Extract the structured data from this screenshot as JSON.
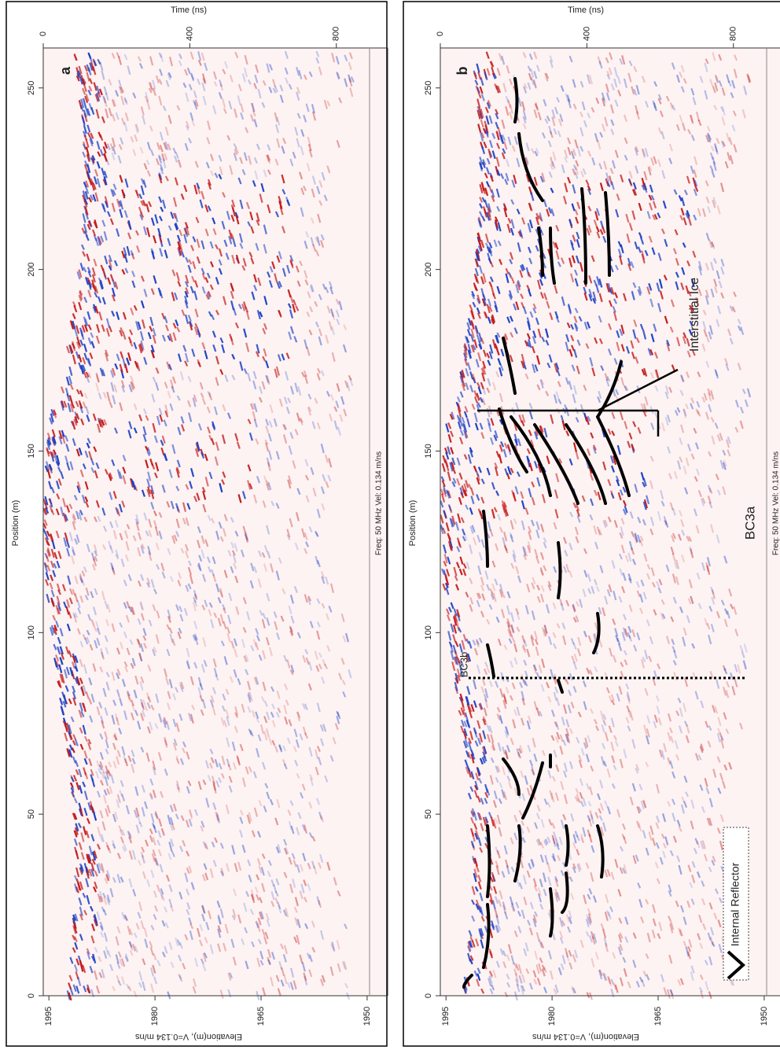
{
  "chart_data": [
    {
      "type": "radargram",
      "label": "a",
      "xlabel": "Position (m)",
      "time_label": "Time (ns)",
      "elevation_label": "Elevation(m), V=0.134 m/ns",
      "footer": "Freq: 50 MHz  Vel: 0.134 m/ns",
      "xlim": [
        0,
        261
      ],
      "xticks": [
        0,
        50,
        100,
        150,
        200,
        250
      ],
      "time_lim": [
        0,
        940
      ],
      "time_ticks": [
        0,
        400,
        800
      ],
      "elevation_lim": [
        1995.8,
        1947.1
      ],
      "elevation_ticks": [
        1995,
        1980,
        1965,
        1950
      ]
    },
    {
      "type": "radargram",
      "label": "b",
      "xlabel": "Position (m)",
      "time_label": "Time (ns)",
      "elevation_label": "Elevation(m), V=0.134 m/ns",
      "footer": "Freq: 50 MHz  Vel: 0.134 m/ns",
      "xlim": [
        0,
        261
      ],
      "xticks": [
        0,
        50,
        100,
        150,
        200,
        250
      ],
      "time_lim": [
        0,
        940
      ],
      "time_ticks": [
        0,
        400,
        800
      ],
      "elevation_lim": [
        1995.8,
        1947.1
      ],
      "elevation_ticks": [
        1995,
        1980,
        1965,
        1950
      ],
      "annotations": [
        "Interstitial Ice",
        "BC3a",
        "BC3b"
      ],
      "legend": "Internal Reflector"
    }
  ]
}
